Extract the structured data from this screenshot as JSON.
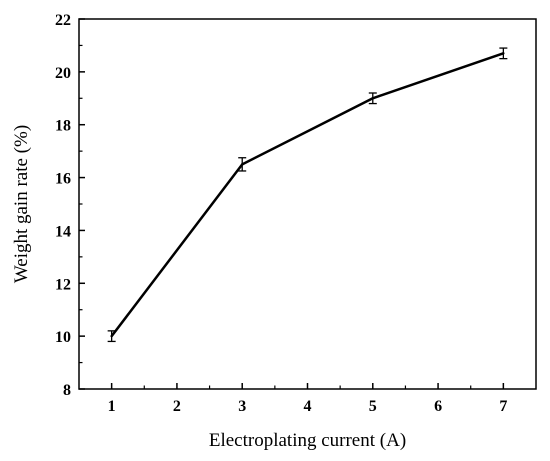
{
  "chart_data": {
    "type": "line",
    "xlabel": "Electroplating current (A)",
    "ylabel": "Weight gain rate (%)",
    "xlim": [
      0.5,
      7.5
    ],
    "ylim": [
      8,
      22
    ],
    "xticks": [
      1,
      2,
      3,
      4,
      5,
      6,
      7
    ],
    "yticks": [
      8,
      10,
      12,
      14,
      16,
      18,
      20,
      22
    ],
    "grid": false,
    "legend": "none",
    "series": [
      {
        "x": [
          1,
          3,
          5,
          7
        ],
        "y": [
          10.0,
          16.5,
          19.0,
          20.7
        ],
        "error": [
          0.2,
          0.25,
          0.2,
          0.2
        ],
        "color": "#000000"
      }
    ]
  }
}
